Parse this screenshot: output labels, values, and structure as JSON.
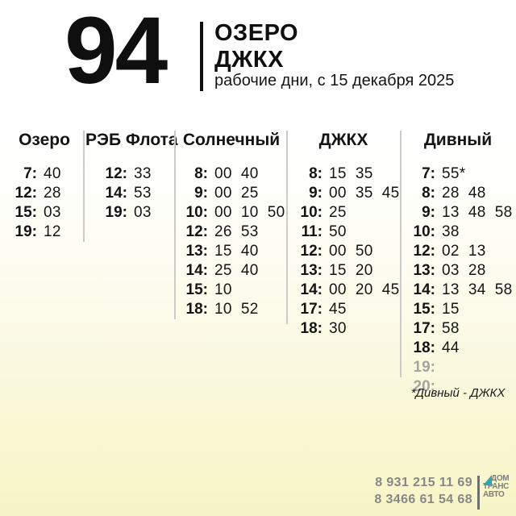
{
  "header": {
    "route_number": "94",
    "title_line1": "ОЗЕРО",
    "title_line2": "ДЖКХ",
    "subtitle": "рабочие дни, с 15 декабря 2025"
  },
  "schedule": {
    "columns": [
      {
        "name": "Озеро",
        "rows": [
          {
            "hour": "7",
            "minutes": [
              "40"
            ]
          },
          {
            "hour": "12",
            "minutes": [
              "28"
            ]
          },
          {
            "hour": "15",
            "minutes": [
              "03"
            ]
          },
          {
            "hour": "19",
            "minutes": [
              "12"
            ]
          }
        ]
      },
      {
        "name": "РЭБ Флота",
        "rows": [
          {
            "hour": "12",
            "minutes": [
              "33"
            ]
          },
          {
            "hour": "14",
            "minutes": [
              "53"
            ]
          },
          {
            "hour": "19",
            "minutes": [
              "03"
            ]
          }
        ]
      },
      {
        "name": "Солнечный",
        "rows": [
          {
            "hour": "8",
            "minutes": [
              "00",
              "40"
            ]
          },
          {
            "hour": "9",
            "minutes": [
              "00",
              "25"
            ]
          },
          {
            "hour": "10",
            "minutes": [
              "00",
              "10",
              "50"
            ]
          },
          {
            "hour": "12",
            "minutes": [
              "26",
              "53"
            ]
          },
          {
            "hour": "13",
            "minutes": [
              "15",
              "40"
            ]
          },
          {
            "hour": "14",
            "minutes": [
              "25",
              "40"
            ]
          },
          {
            "hour": "15",
            "minutes": [
              "10"
            ]
          },
          {
            "hour": "18",
            "minutes": [
              "10",
              "52"
            ]
          }
        ]
      },
      {
        "name": "ДЖКХ",
        "rows": [
          {
            "hour": "8",
            "minutes": [
              "15",
              "35"
            ]
          },
          {
            "hour": "9",
            "minutes": [
              "00",
              "35",
              "45"
            ]
          },
          {
            "hour": "10",
            "minutes": [
              "25"
            ]
          },
          {
            "hour": "11",
            "minutes": [
              "50"
            ]
          },
          {
            "hour": "12",
            "minutes": [
              "00",
              "50"
            ]
          },
          {
            "hour": "13",
            "minutes": [
              "15",
              "20"
            ]
          },
          {
            "hour": "14",
            "minutes": [
              "00",
              "20",
              "45"
            ]
          },
          {
            "hour": "17",
            "minutes": [
              "45"
            ]
          },
          {
            "hour": "18",
            "minutes": [
              "30"
            ]
          }
        ]
      },
      {
        "name": "Дивный",
        "rows": [
          {
            "hour": "7",
            "minutes": [
              "55*"
            ]
          },
          {
            "hour": "8",
            "minutes": [
              "28",
              "48"
            ]
          },
          {
            "hour": "9",
            "minutes": [
              "13",
              "48",
              "58"
            ]
          },
          {
            "hour": "10",
            "minutes": [
              "38"
            ]
          },
          {
            "hour": "12",
            "minutes": [
              "02",
              "13"
            ]
          },
          {
            "hour": "13",
            "minutes": [
              "03",
              "28"
            ]
          },
          {
            "hour": "14",
            "minutes": [
              "13",
              "34",
              "58"
            ]
          },
          {
            "hour": "15",
            "minutes": [
              "15"
            ]
          },
          {
            "hour": "17",
            "minutes": [
              "58"
            ]
          },
          {
            "hour": "18",
            "minutes": [
              "44"
            ]
          },
          {
            "hour": "19",
            "minutes": [],
            "muted": true
          },
          {
            "hour": "20",
            "minutes": [],
            "muted": true
          }
        ]
      }
    ],
    "footnote": "*Дивный - ДЖКХ"
  },
  "footer": {
    "phones": [
      "8 931 215 11 69",
      "8 3466 61 54 68"
    ],
    "logo_lines": [
      "ДОМ",
      "ТРАНС",
      "АВТО"
    ]
  },
  "colors": {
    "ink": "#0f0f0f",
    "muted_row": "#a5a5a0",
    "divider": "#cbcbc8",
    "phone_gray": "#878787",
    "logo_teal": "#35a3b5",
    "background_bottom": "#f7f5c6"
  }
}
